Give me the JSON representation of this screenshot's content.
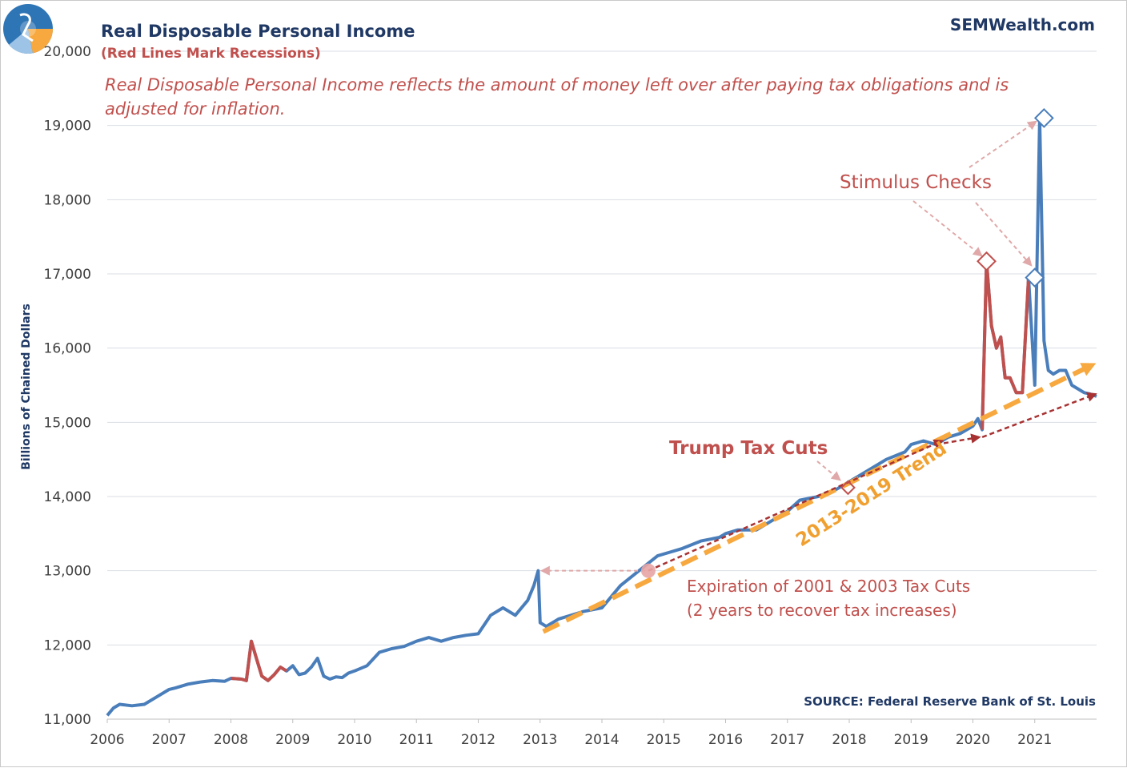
{
  "header": {
    "title": "Real Disposable Personal Income",
    "subtitle": "(Red Lines Mark Recessions)",
    "site": "SEMWealth.com",
    "description_line1": "Real Disposable Personal Income reflects the amount of money left over after paying tax obligations and is",
    "description_line2": "adjusted for inflation."
  },
  "source": "SOURCE:  Federal Reserve Bank of St. Louis",
  "annotations": {
    "stimulus": "Stimulus Checks",
    "trump": "Trump Tax Cuts",
    "trend": "2013-2019 Trend",
    "expiration_line1": "Expiration of 2001 & 2003 Tax Cuts",
    "expiration_line2": "(2 years to recover tax increases)"
  },
  "colors": {
    "series": "#4a7ebb",
    "recession": "#c0504d",
    "trend": "#f7a83e",
    "arrow_dark": "#a83232",
    "arrow_light": "#e0a8a8"
  },
  "chart_data": {
    "type": "line",
    "title": "Real Disposable Personal Income",
    "subtitle": "(Red Lines Mark Recessions)",
    "ylabel": "Billions of Chained Dollars",
    "xlabel": "",
    "xlim": [
      2006,
      2022
    ],
    "ylim": [
      11000,
      20000
    ],
    "x_ticks": [
      2006,
      2007,
      2008,
      2009,
      2010,
      2011,
      2012,
      2013,
      2014,
      2015,
      2016,
      2017,
      2018,
      2019,
      2020,
      2021
    ],
    "y_ticks": [
      11000,
      12000,
      13000,
      14000,
      15000,
      16000,
      17000,
      18000,
      19000,
      20000
    ],
    "y_tick_labels": [
      "11,000",
      "12,000",
      "13,000",
      "14,000",
      "15,000",
      "16,000",
      "17,000",
      "18,000",
      "19,000",
      "20,000"
    ],
    "grid": true,
    "series": [
      {
        "name": "Real Disposable Personal Income",
        "x": [
          2006.0,
          2006.1,
          2006.2,
          2006.4,
          2006.6,
          2006.8,
          2007.0,
          2007.1,
          2007.3,
          2007.5,
          2007.7,
          2007.9,
          2008.0,
          2008.17,
          2008.25,
          2008.33,
          2008.42,
          2008.5,
          2008.6,
          2008.7,
          2008.8,
          2008.9,
          2009.0,
          2009.1,
          2009.2,
          2009.3,
          2009.4,
          2009.5,
          2009.6,
          2009.7,
          2009.8,
          2009.9,
          2010.0,
          2010.2,
          2010.4,
          2010.6,
          2010.8,
          2011.0,
          2011.2,
          2011.4,
          2011.6,
          2011.8,
          2012.0,
          2012.2,
          2012.4,
          2012.6,
          2012.8,
          2012.9,
          2012.97,
          2013.0,
          2013.1,
          2013.3,
          2013.5,
          2013.7,
          2014.0,
          2014.3,
          2014.6,
          2014.9,
          2015.1,
          2015.3,
          2015.6,
          2015.9,
          2016.0,
          2016.2,
          2016.5,
          2016.8,
          2017.0,
          2017.2,
          2017.5,
          2017.8,
          2018.0,
          2018.3,
          2018.6,
          2018.9,
          2019.0,
          2019.2,
          2019.4,
          2019.6,
          2019.8,
          2020.0,
          2020.08,
          2020.15,
          2020.22,
          2020.3,
          2020.38,
          2020.45,
          2020.52,
          2020.6,
          2020.7,
          2020.8,
          2020.9,
          2021.0,
          2021.08,
          2021.15,
          2021.22,
          2021.3,
          2021.4,
          2021.5,
          2021.6,
          2021.7,
          2021.8,
          2021.9,
          2022.0
        ],
        "y": [
          11050,
          11150,
          11200,
          11180,
          11200,
          11300,
          11400,
          11420,
          11470,
          11500,
          11520,
          11510,
          11550,
          11540,
          11520,
          12050,
          11800,
          11580,
          11520,
          11600,
          11700,
          11650,
          11720,
          11600,
          11620,
          11700,
          11820,
          11580,
          11540,
          11570,
          11560,
          11620,
          11650,
          11720,
          11900,
          11950,
          11980,
          12050,
          12100,
          12050,
          12100,
          12130,
          12150,
          12400,
          12500,
          12400,
          12600,
          12800,
          13000,
          12300,
          12250,
          12350,
          12400,
          12450,
          12500,
          12800,
          13000,
          13200,
          13250,
          13300,
          13400,
          13450,
          13500,
          13550,
          13550,
          13700,
          13800,
          13950,
          14000,
          14100,
          14200,
          14350,
          14500,
          14600,
          14700,
          14750,
          14700,
          14800,
          14850,
          14950,
          15050,
          14900,
          17170,
          16300,
          16000,
          16150,
          15600,
          15600,
          15400,
          15400,
          16950,
          15500,
          19100,
          16100,
          15700,
          15650,
          15700,
          15700,
          15500,
          15450,
          15400,
          15380,
          15350
        ]
      }
    ],
    "recession_shading": [
      [
        2008.0,
        2008.9
      ],
      [
        2020.15,
        2020.9
      ]
    ]
  }
}
